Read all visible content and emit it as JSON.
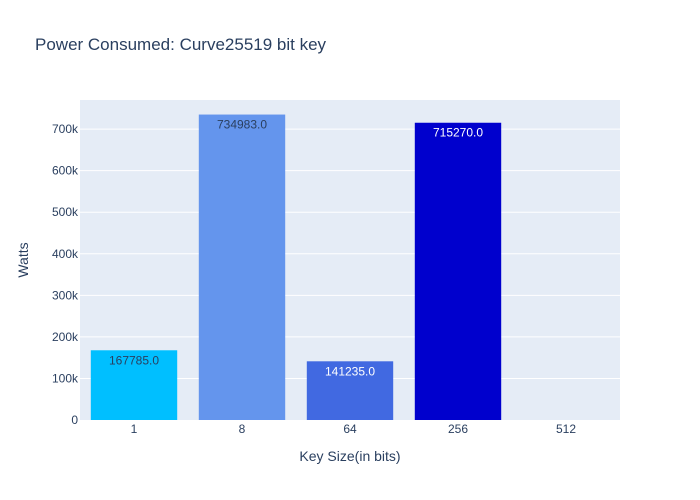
{
  "chart_data": {
    "type": "bar",
    "title": "Power Consumed: Curve25519 bit key",
    "xlabel": "Key Size(in bits)",
    "ylabel": "Watts",
    "categories": [
      "1",
      "8",
      "64",
      "256",
      "512"
    ],
    "values": [
      167785.0,
      734983.0,
      141235.0,
      715270.0,
      0
    ],
    "data_labels": [
      "167785.0",
      "734983.0",
      "141235.0",
      "715270.0",
      ""
    ],
    "colors": [
      "#00bfff",
      "#6495ed",
      "#4169e1",
      "#0000cd",
      "#00008b"
    ],
    "label_colors": [
      "#2a3f5f",
      "#2a3f5f",
      "#ffffff",
      "#ffffff",
      "#ffffff"
    ],
    "ylim": [
      0,
      770000
    ],
    "yticks": [
      0,
      100000,
      200000,
      300000,
      400000,
      500000,
      600000,
      700000
    ],
    "ytick_labels": [
      "0",
      "100k",
      "200k",
      "300k",
      "400k",
      "500k",
      "600k",
      "700k"
    ],
    "grid": true,
    "plot_background": "#e5ecf6"
  }
}
